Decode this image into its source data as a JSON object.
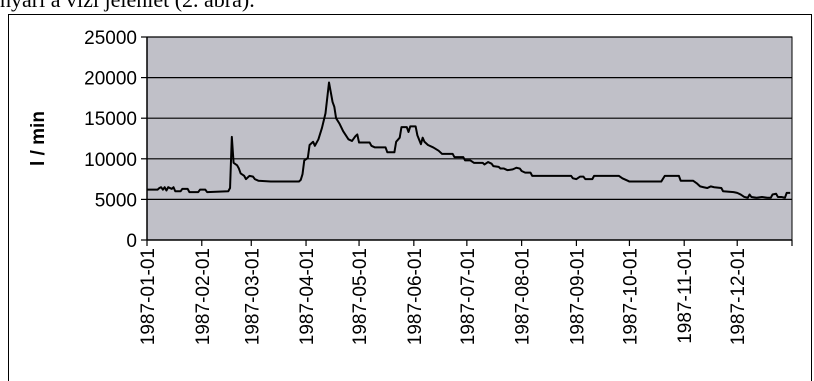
{
  "caption": "nyári a vízi jelenlét (2. ábra).",
  "colors": {
    "plot_background": "#c0c0c8",
    "line": "#000000",
    "gridline": "#000000"
  },
  "chart_data": {
    "type": "line",
    "title": "",
    "xlabel": "",
    "ylabel": "l / min",
    "ylim": [
      0,
      25000
    ],
    "yticks": [
      "0",
      "5000",
      "10000",
      "15000",
      "20000",
      "25000"
    ],
    "xlim": [
      "1987-01-01",
      "1988-01-01"
    ],
    "xticks": [
      "1987-01-01",
      "1987-02-01",
      "1987-03-01",
      "1987-04-01",
      "1987-05-01",
      "1987-06-01",
      "1987-07-01",
      "1987-08-01",
      "1987-09-01",
      "1987-10-01",
      "1987-11-01",
      "1987-12-01"
    ],
    "grid": "horizontal",
    "legend": "none",
    "series": [
      {
        "name": "",
        "points": [
          [
            "1987-01-01",
            6200
          ],
          [
            "1987-01-07",
            6200
          ],
          [
            "1987-01-08",
            6400
          ],
          [
            "1987-01-09",
            6500
          ],
          [
            "1987-01-10",
            6200
          ],
          [
            "1987-01-11",
            6500
          ],
          [
            "1987-01-12",
            6100
          ],
          [
            "1987-01-13",
            6500
          ],
          [
            "1987-01-14",
            6400
          ],
          [
            "1987-01-15",
            6300
          ],
          [
            "1987-01-16",
            6500
          ],
          [
            "1987-01-17",
            6000
          ],
          [
            "1987-01-20",
            6000
          ],
          [
            "1987-01-21",
            6300
          ],
          [
            "1987-01-24",
            6300
          ],
          [
            "1987-01-25",
            5900
          ],
          [
            "1987-01-30",
            5900
          ],
          [
            "1987-01-31",
            6200
          ],
          [
            "1987-02-03",
            6200
          ],
          [
            "1987-02-04",
            5900
          ],
          [
            "1987-02-16",
            6000
          ],
          [
            "1987-02-17",
            6400
          ],
          [
            "1987-02-18",
            12700
          ],
          [
            "1987-02-19",
            9500
          ],
          [
            "1987-02-21",
            9200
          ],
          [
            "1987-02-22",
            8800
          ],
          [
            "1987-02-23",
            8200
          ],
          [
            "1987-02-25",
            7900
          ],
          [
            "1987-02-26",
            7500
          ],
          [
            "1987-02-28",
            7900
          ],
          [
            "1987-03-02",
            7800
          ],
          [
            "1987-03-03",
            7500
          ],
          [
            "1987-03-05",
            7300
          ],
          [
            "1987-03-12",
            7200
          ],
          [
            "1987-03-28",
            7200
          ],
          [
            "1987-03-29",
            7400
          ],
          [
            "1987-03-30",
            8100
          ],
          [
            "1987-03-31",
            9800
          ],
          [
            "1987-04-02",
            10100
          ],
          [
            "1987-04-03",
            11700
          ],
          [
            "1987-04-05",
            12100
          ],
          [
            "1987-04-06",
            11600
          ],
          [
            "1987-04-08",
            12400
          ],
          [
            "1987-04-10",
            13800
          ],
          [
            "1987-04-12",
            15600
          ],
          [
            "1987-04-14",
            19400
          ],
          [
            "1987-04-15",
            18200
          ],
          [
            "1987-04-16",
            17000
          ],
          [
            "1987-04-17",
            16400
          ],
          [
            "1987-04-18",
            15000
          ],
          [
            "1987-04-20",
            14300
          ],
          [
            "1987-04-22",
            13400
          ],
          [
            "1987-04-25",
            12400
          ],
          [
            "1987-04-27",
            12200
          ],
          [
            "1987-04-29",
            12800
          ],
          [
            "1987-04-30",
            13000
          ],
          [
            "1987-05-01",
            12000
          ],
          [
            "1987-05-07",
            12000
          ],
          [
            "1987-05-08",
            11600
          ],
          [
            "1987-05-10",
            11400
          ],
          [
            "1987-05-16",
            11400
          ],
          [
            "1987-05-17",
            10800
          ],
          [
            "1987-05-21",
            10800
          ],
          [
            "1987-05-22",
            12100
          ],
          [
            "1987-05-24",
            12600
          ],
          [
            "1987-05-25",
            13900
          ],
          [
            "1987-05-28",
            13900
          ],
          [
            "1987-05-29",
            13300
          ],
          [
            "1987-05-30",
            14000
          ],
          [
            "1987-06-02",
            14000
          ],
          [
            "1987-06-03",
            12900
          ],
          [
            "1987-06-05",
            11800
          ],
          [
            "1987-06-06",
            12600
          ],
          [
            "1987-06-07",
            12100
          ],
          [
            "1987-06-09",
            11700
          ],
          [
            "1987-06-12",
            11400
          ],
          [
            "1987-06-15",
            11000
          ],
          [
            "1987-06-17",
            10600
          ],
          [
            "1987-06-23",
            10600
          ],
          [
            "1987-06-24",
            10200
          ],
          [
            "1987-06-29",
            10200
          ],
          [
            "1987-06-30",
            9800
          ],
          [
            "1987-07-03",
            9800
          ],
          [
            "1987-07-05",
            9500
          ],
          [
            "1987-07-10",
            9500
          ],
          [
            "1987-07-11",
            9300
          ],
          [
            "1987-07-13",
            9600
          ],
          [
            "1987-07-15",
            9400
          ],
          [
            "1987-07-16",
            9100
          ],
          [
            "1987-07-19",
            9000
          ],
          [
            "1987-07-20",
            8800
          ],
          [
            "1987-07-22",
            8800
          ],
          [
            "1987-07-24",
            8600
          ],
          [
            "1987-07-27",
            8700
          ],
          [
            "1987-07-29",
            8900
          ],
          [
            "1987-07-31",
            8800
          ],
          [
            "1987-08-01",
            8500
          ],
          [
            "1987-08-03",
            8300
          ],
          [
            "1987-08-06",
            8300
          ],
          [
            "1987-08-07",
            7900
          ],
          [
            "1987-08-29",
            7900
          ],
          [
            "1987-08-30",
            7600
          ],
          [
            "1987-09-01",
            7500
          ],
          [
            "1987-09-03",
            7800
          ],
          [
            "1987-09-05",
            7800
          ],
          [
            "1987-09-06",
            7500
          ],
          [
            "1987-09-10",
            7500
          ],
          [
            "1987-09-11",
            7900
          ],
          [
            "1987-09-25",
            7900
          ],
          [
            "1987-09-27",
            7600
          ],
          [
            "1987-09-30",
            7300
          ],
          [
            "1987-10-01",
            7200
          ],
          [
            "1987-10-09",
            7200
          ],
          [
            "1987-10-19",
            7200
          ],
          [
            "1987-10-21",
            7900
          ],
          [
            "1987-10-29",
            7900
          ],
          [
            "1987-10-30",
            7300
          ],
          [
            "1987-11-01",
            7300
          ],
          [
            "1987-11-06",
            7300
          ],
          [
            "1987-11-08",
            7000
          ],
          [
            "1987-11-10",
            6600
          ],
          [
            "1987-11-12",
            6500
          ],
          [
            "1987-11-14",
            6400
          ],
          [
            "1987-11-16",
            6600
          ],
          [
            "1987-11-18",
            6500
          ],
          [
            "1987-11-22",
            6400
          ],
          [
            "1987-11-23",
            6000
          ],
          [
            "1987-11-29",
            5900
          ],
          [
            "1987-12-01",
            5800
          ],
          [
            "1987-12-03",
            5600
          ],
          [
            "1987-12-05",
            5300
          ],
          [
            "1987-12-07",
            5200
          ],
          [
            "1987-12-08",
            5600
          ],
          [
            "1987-12-09",
            5300
          ],
          [
            "1987-12-12",
            5200
          ],
          [
            "1987-12-15",
            5300
          ],
          [
            "1987-12-18",
            5200
          ],
          [
            "1987-12-20",
            5200
          ],
          [
            "1987-12-21",
            5600
          ],
          [
            "1987-12-23",
            5700
          ],
          [
            "1987-12-24",
            5300
          ],
          [
            "1987-12-26",
            5300
          ],
          [
            "1987-12-28",
            5200
          ],
          [
            "1987-12-29",
            5800
          ],
          [
            "1987-12-31",
            5800
          ]
        ]
      }
    ]
  }
}
